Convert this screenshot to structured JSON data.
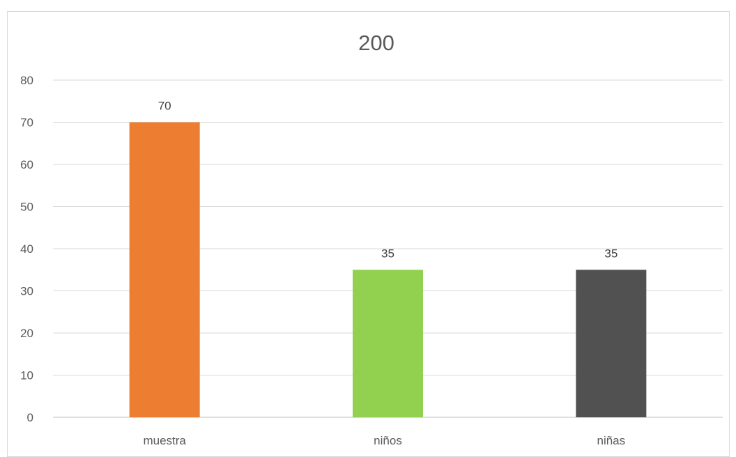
{
  "chart_data": {
    "type": "bar",
    "title": "200",
    "categories": [
      "muestra",
      "niños",
      "niñas"
    ],
    "values": [
      70,
      35,
      35
    ],
    "colors": [
      "#ed7d31",
      "#92d050",
      "#515151"
    ],
    "data_labels": [
      "70",
      "35",
      "35"
    ],
    "ylim": [
      0,
      80
    ],
    "yticks": [
      0,
      10,
      20,
      30,
      40,
      50,
      60,
      70,
      80
    ],
    "grid": true,
    "legend": "none",
    "xlabel": "",
    "ylabel": ""
  }
}
